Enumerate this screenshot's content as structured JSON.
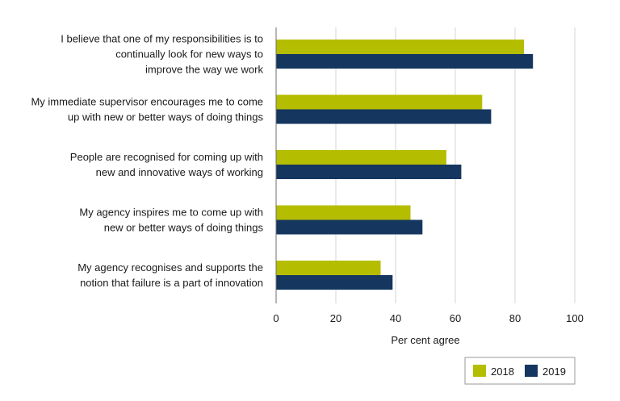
{
  "chart_data": {
    "type": "bar",
    "orientation": "horizontal",
    "title": "",
    "xlabel": "Per cent agree",
    "ylabel": "",
    "xlim": [
      0,
      100
    ],
    "xticks": [
      0,
      20,
      40,
      60,
      80,
      100
    ],
    "grid": true,
    "legend_position": "bottom-right",
    "categories": [
      [
        "I believe that one of my responsibilities is to",
        "continually look for new ways to",
        "improve the way we work"
      ],
      [
        "My immediate supervisor encourages me to come",
        "up with new or better ways of doing things"
      ],
      [
        "People are recognised for coming up with",
        "new and innovative ways of working"
      ],
      [
        "My agency inspires me to come up with",
        "new or better ways of doing things"
      ],
      [
        "My agency recognises and supports the",
        "notion that failure is a part of innovation"
      ]
    ],
    "series": [
      {
        "name": "2018",
        "color": "#b5bd00",
        "values": [
          83,
          69,
          57,
          45,
          35
        ]
      },
      {
        "name": "2019",
        "color": "#14365f",
        "values": [
          86,
          72,
          62,
          49,
          39
        ]
      }
    ]
  }
}
